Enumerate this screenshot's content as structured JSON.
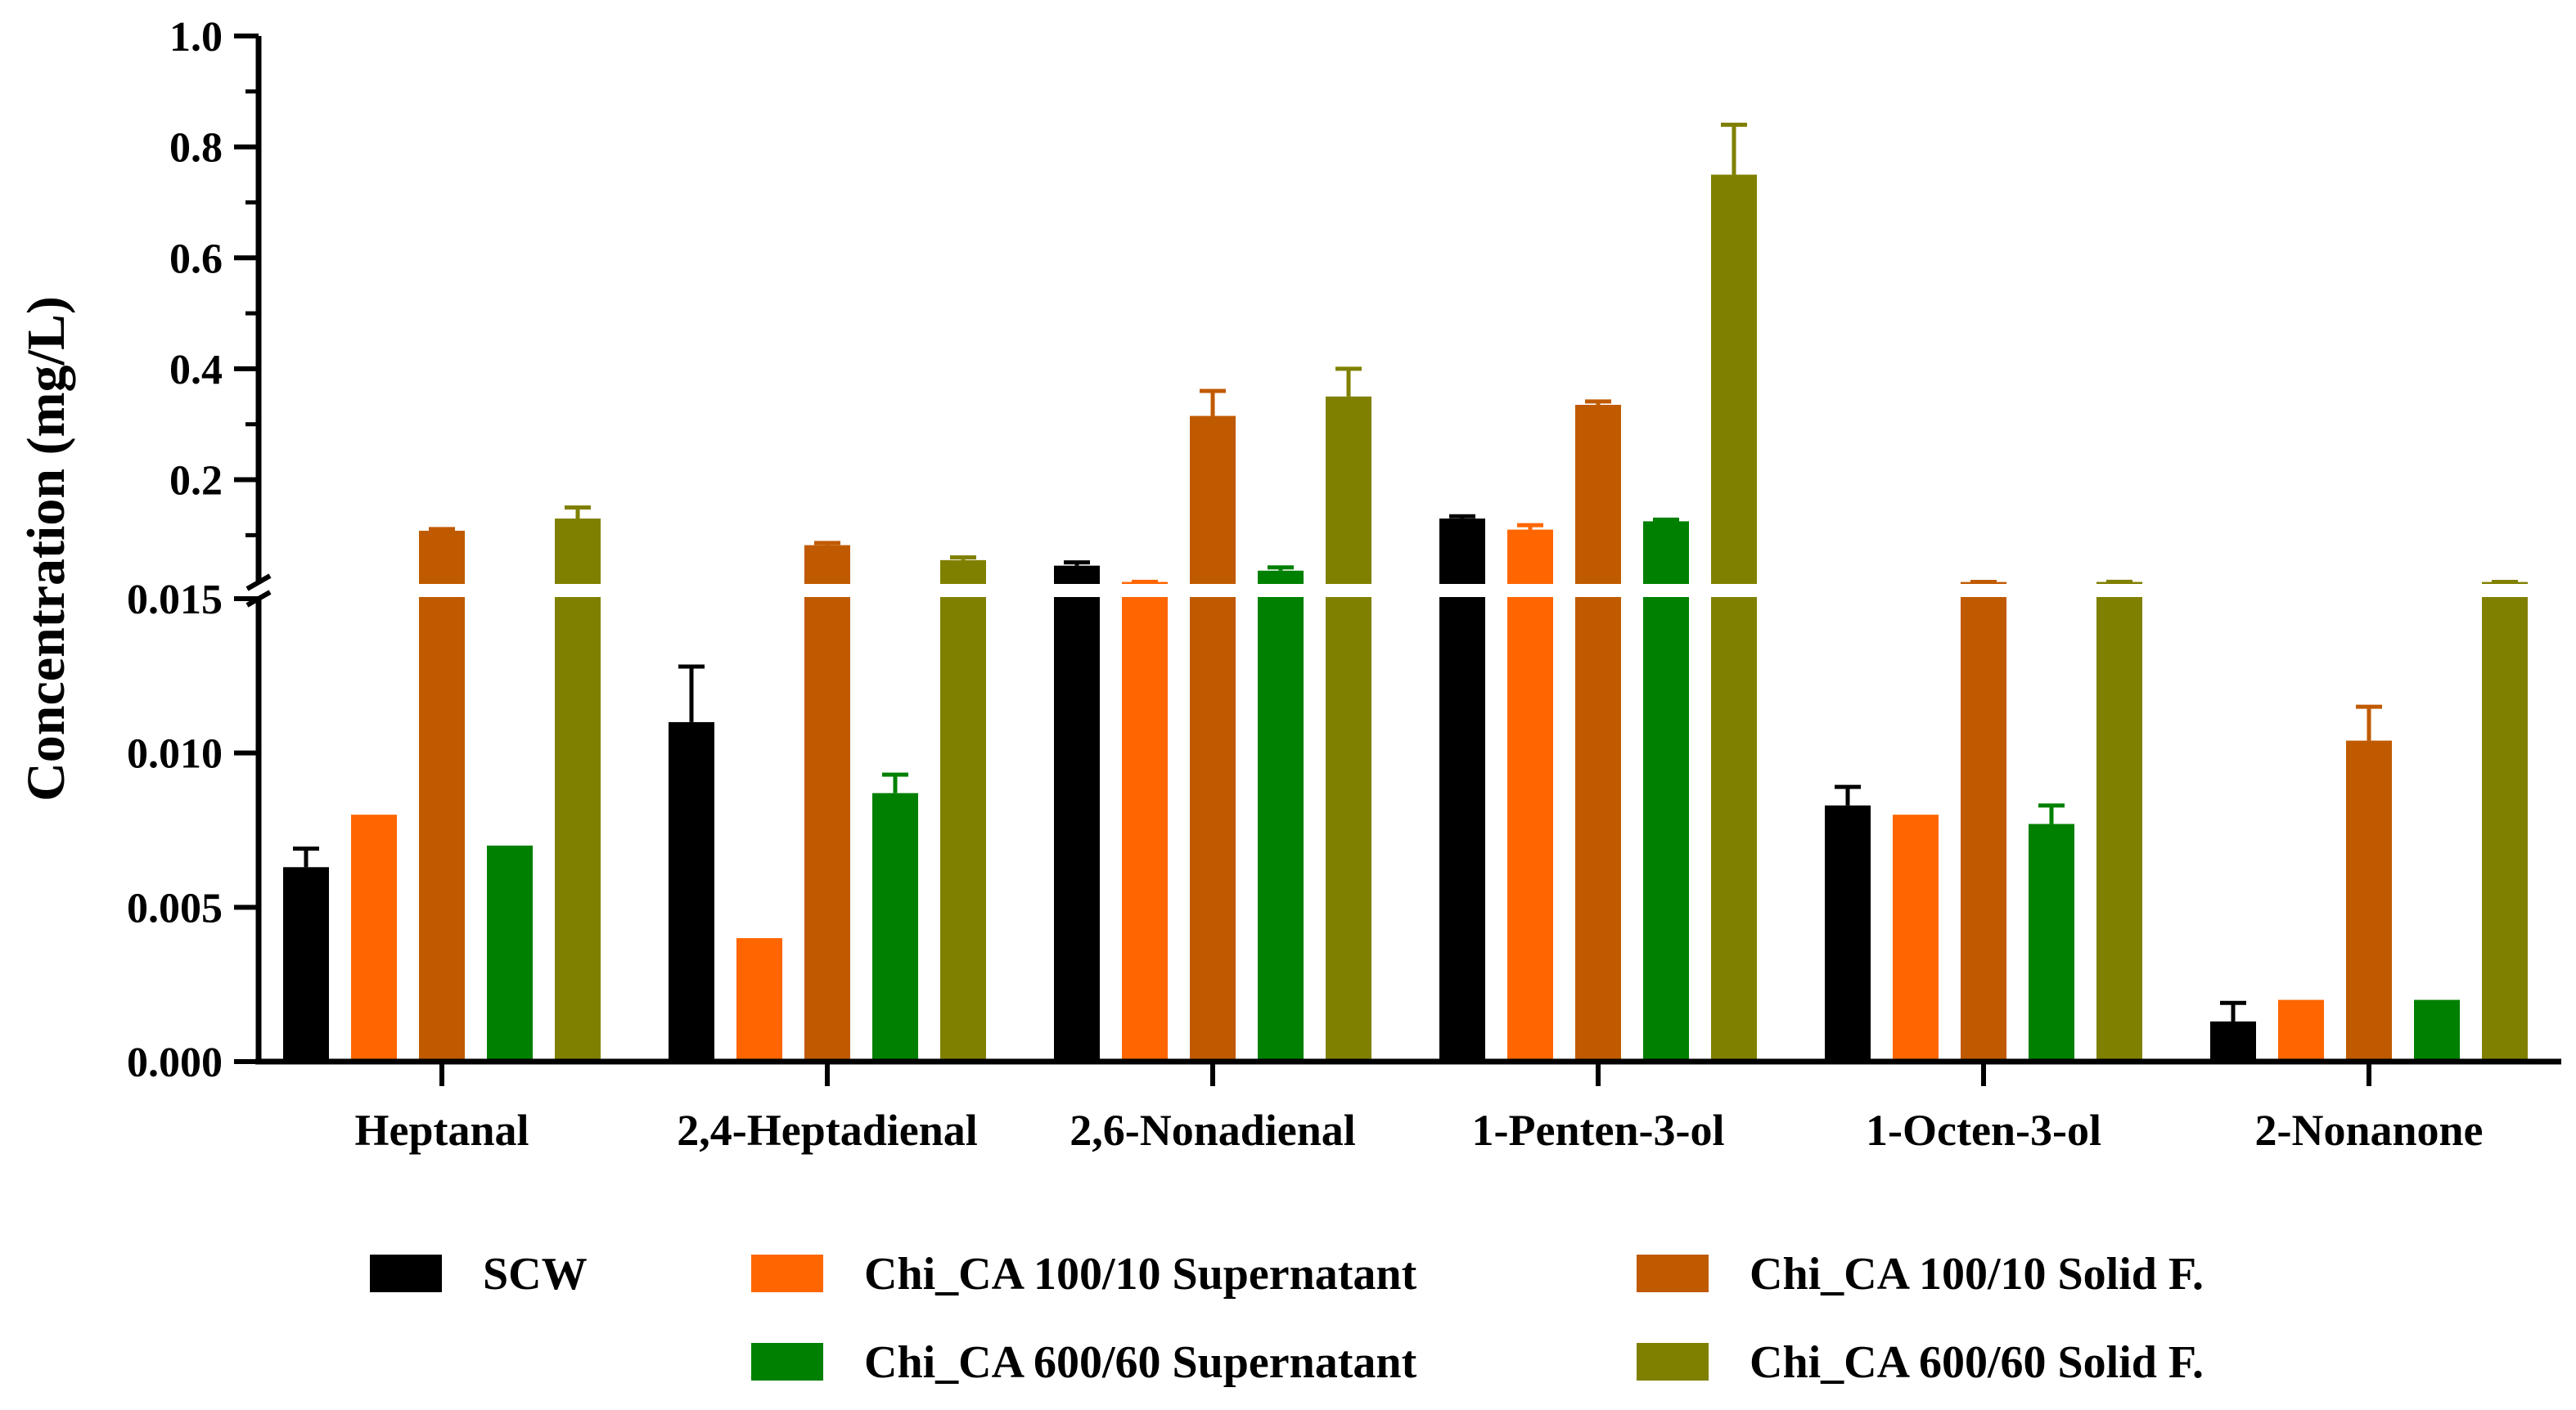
{
  "chart_data": {
    "type": "bar",
    "title": "",
    "xlabel": "",
    "ylabel": "Concentration (mg/L)",
    "categories": [
      "Heptanal",
      "2,4-Heptadienal",
      "2,6-Nonadienal",
      "1-Penten-3-ol",
      "1-Octen-3-ol",
      "2-Nonanone"
    ],
    "axis_break": {
      "lower": {
        "ylim": [
          0,
          0.015
        ],
        "ticks": [
          "0.000",
          "0.005",
          "0.010",
          "0.015"
        ],
        "tick_values": [
          0,
          0.005,
          0.01,
          0.015
        ]
      },
      "upper": {
        "ylim": [
          0.015,
          1.0
        ],
        "ticks": [
          "0.2",
          "0.4",
          "0.6",
          "0.8",
          "1.0"
        ],
        "tick_values": [
          0.2,
          0.4,
          0.6,
          0.8,
          1.0
        ]
      }
    },
    "series": [
      {
        "name": "SCW",
        "color": "#000000",
        "values": [
          0.0063,
          0.011,
          0.045,
          0.13,
          0.0083,
          0.0013
        ],
        "errors": [
          0.0006,
          0.0018,
          0.006,
          0.004,
          0.0006,
          0.0006
        ]
      },
      {
        "name": "Chi_CA 100/10 Supernatant",
        "color": "#FF6600",
        "values": [
          0.008,
          0.004,
          0.0157,
          0.11,
          0.008,
          0.002
        ],
        "errors": [
          0,
          0,
          0.0002,
          0.008,
          0,
          0
        ]
      },
      {
        "name": "Chi_CA 100/10 Solid F.",
        "color": "#C05A00",
        "values": [
          0.108,
          0.082,
          0.315,
          0.335,
          0.0156,
          0.0104
        ],
        "errors": [
          0.003,
          0.004,
          0.045,
          0.006,
          0.0002,
          0.0011
        ]
      },
      {
        "name": "Chi_CA 600/60 Supernatant",
        "color": "#008000",
        "values": [
          0.007,
          0.0087,
          0.036,
          0.125,
          0.0077,
          0.002
        ],
        "errors": [
          0,
          0.0006,
          0.006,
          0.003,
          0.0006,
          0
        ]
      },
      {
        "name": "Chi_CA 600/60 Solid F.",
        "color": "#808000",
        "values": [
          0.13,
          0.055,
          0.35,
          0.75,
          0.0157,
          0.0156
        ],
        "errors": [
          0.02,
          0.005,
          0.05,
          0.09,
          0.0003,
          0.0002
        ]
      }
    ],
    "legend": {
      "position": "bottom",
      "columns": 3
    }
  }
}
